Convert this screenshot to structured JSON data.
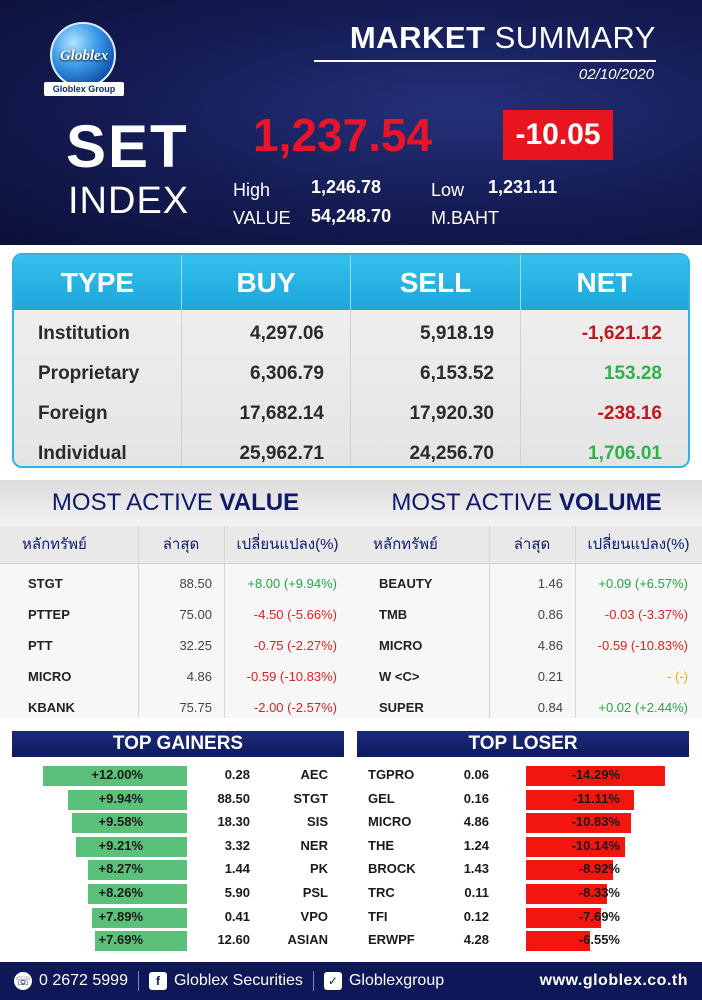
{
  "header": {
    "logo_text": "Globlex",
    "logo_sub": "Globlex Group",
    "title_bold": "MARKET",
    "title_rest": "SUMMARY",
    "date": "02/10/2020"
  },
  "set": {
    "label_big": "SET",
    "label_index": "INDEX",
    "value": "1,237.54",
    "change": "-10.05",
    "high_label": "High",
    "high": "1,246.78",
    "low_label": "Low",
    "low": "1,231.11",
    "value_label": "VALUE",
    "turnover": "54,248.70",
    "unit": "M.BAHT"
  },
  "investors": {
    "headers": [
      "TYPE",
      "BUY",
      "SELL",
      "NET"
    ],
    "rows": [
      {
        "type": "Institution",
        "buy": "4,297.06",
        "sell": "5,918.19",
        "net": "-1,621.12",
        "sign": "neg"
      },
      {
        "type": "Proprietary",
        "buy": "6,306.79",
        "sell": "6,153.52",
        "net": "153.28",
        "sign": "pos"
      },
      {
        "type": "Foreign",
        "buy": "17,682.14",
        "sell": "17,920.30",
        "net": "-238.16",
        "sign": "neg"
      },
      {
        "type": "Individual",
        "buy": "25,962.71",
        "sell": "24,256.70",
        "net": "1,706.01",
        "sign": "pos"
      }
    ]
  },
  "most_active_value": {
    "title_a": "MOST ACTIVE ",
    "title_b": "VALUE",
    "cols": [
      "หลักทรัพย์",
      "ล่าสุด",
      "เปลี่ยนแปลง(%)"
    ],
    "rows": [
      {
        "sym": "STGT",
        "last": "88.50",
        "chg": "+8.00 (+9.94%)",
        "sign": "pos"
      },
      {
        "sym": "PTTEP",
        "last": "75.00",
        "chg": "-4.50 (-5.66%)",
        "sign": "neg"
      },
      {
        "sym": "PTT",
        "last": "32.25",
        "chg": "-0.75 (-2.27%)",
        "sign": "neg"
      },
      {
        "sym": "MICRO",
        "last": "4.86",
        "chg": "-0.59 (-10.83%)",
        "sign": "neg"
      },
      {
        "sym": "KBANK",
        "last": "75.75",
        "chg": "-2.00 (-2.57%)",
        "sign": "neg"
      }
    ]
  },
  "most_active_volume": {
    "title_a": "MOST ACTIVE ",
    "title_b": "VOLUME",
    "cols": [
      "หลักทรัพย์",
      "ล่าสุด",
      "เปลี่ยนแปลง(%)"
    ],
    "rows": [
      {
        "sym": "BEAUTY",
        "last": "1.46",
        "chg": "+0.09 (+6.57%)",
        "sign": "pos"
      },
      {
        "sym": "TMB",
        "last": "0.86",
        "chg": "-0.03 (-3.37%)",
        "sign": "neg"
      },
      {
        "sym": "MICRO",
        "last": "4.86",
        "chg": "-0.59 (-10.83%)",
        "sign": "neg"
      },
      {
        "sym": "W <C>",
        "last": "0.21",
        "chg": "- (-)",
        "sign": "zero"
      },
      {
        "sym": "SUPER",
        "last": "0.84",
        "chg": "+0.02 (+2.44%)",
        "sign": "pos"
      }
    ]
  },
  "top_gainers": {
    "title": "TOP GAINERS",
    "rows": [
      {
        "pct": "+12.00%",
        "pct_value": 12.0,
        "price": "0.28",
        "sym": "AEC"
      },
      {
        "pct": "+9.94%",
        "pct_value": 9.94,
        "price": "88.50",
        "sym": "STGT"
      },
      {
        "pct": "+9.58%",
        "pct_value": 9.58,
        "price": "18.30",
        "sym": "SIS"
      },
      {
        "pct": "+9.21%",
        "pct_value": 9.21,
        "price": "3.32",
        "sym": "NER"
      },
      {
        "pct": "+8.27%",
        "pct_value": 8.27,
        "price": "1.44",
        "sym": "PK"
      },
      {
        "pct": "+8.26%",
        "pct_value": 8.26,
        "price": "5.90",
        "sym": "PSL"
      },
      {
        "pct": "+7.89%",
        "pct_value": 7.89,
        "price": "0.41",
        "sym": "VPO"
      },
      {
        "pct": "+7.69%",
        "pct_value": 7.69,
        "price": "12.60",
        "sym": "ASIAN"
      }
    ]
  },
  "top_loser": {
    "title": "TOP LOSER",
    "rows": [
      {
        "sym": "TGPRO",
        "price": "0.06",
        "pct": "-14.29%",
        "pct_value": 14.29
      },
      {
        "sym": "GEL",
        "price": "0.16",
        "pct": "-11.11%",
        "pct_value": 11.11
      },
      {
        "sym": "MICRO",
        "price": "4.86",
        "pct": "-10.83%",
        "pct_value": 10.83
      },
      {
        "sym": "THE",
        "price": "1.24",
        "pct": "-10.14%",
        "pct_value": 10.14
      },
      {
        "sym": "BROCK",
        "price": "1.43",
        "pct": "-8.92%",
        "pct_value": 8.92
      },
      {
        "sym": "TRC",
        "price": "0.11",
        "pct": "-8.33%",
        "pct_value": 8.33
      },
      {
        "sym": "TFI",
        "price": "0.12",
        "pct": "-7.69%",
        "pct_value": 7.69
      },
      {
        "sym": "ERWPF",
        "price": "4.28",
        "pct": "-6.55%",
        "pct_value": 6.55
      }
    ]
  },
  "footer": {
    "phone": "0 2672 5999",
    "facebook": "Globlex Securities",
    "line": "Globlexgroup",
    "url": "www.globlex.co.th",
    "icons": [
      "phone-icon",
      "facebook-icon",
      "line-icon"
    ]
  },
  "colors": {
    "navy": "#141b52",
    "red": "#e8152a",
    "cyan": "#1ca5da",
    "green": "#2cb34a",
    "gainer_bar": "#5bc07a",
    "loser_bar": "#f2160e"
  }
}
